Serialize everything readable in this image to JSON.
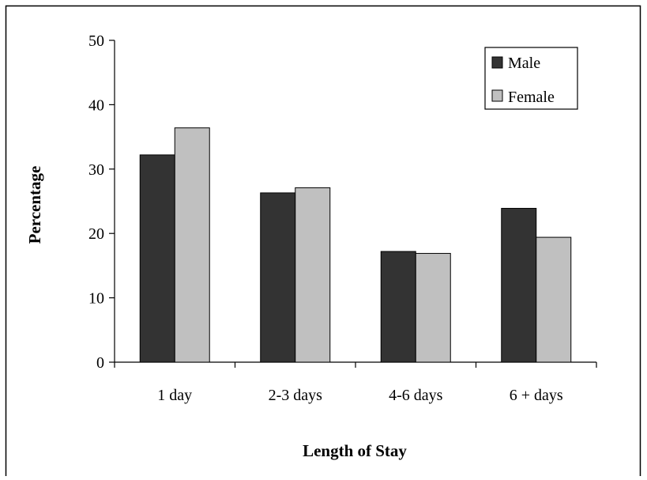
{
  "chart_data": {
    "type": "bar",
    "title": "",
    "xlabel": "Length of Stay",
    "ylabel": "Percentage",
    "categories": [
      "1 day",
      "2-3 days",
      "4-6 days",
      "6 + days"
    ],
    "series": [
      {
        "name": "Male",
        "values": [
          32.2,
          26.3,
          17.2,
          23.9
        ],
        "color": "#333333"
      },
      {
        "name": "Female",
        "values": [
          36.4,
          27.1,
          16.9,
          19.4
        ],
        "color": "#c0c0c0"
      }
    ],
    "ylim": [
      0,
      50
    ],
    "yticks": [
      "0",
      "10",
      "20",
      "30",
      "40",
      "50"
    ],
    "grid": false,
    "legend_position": "top-right"
  }
}
